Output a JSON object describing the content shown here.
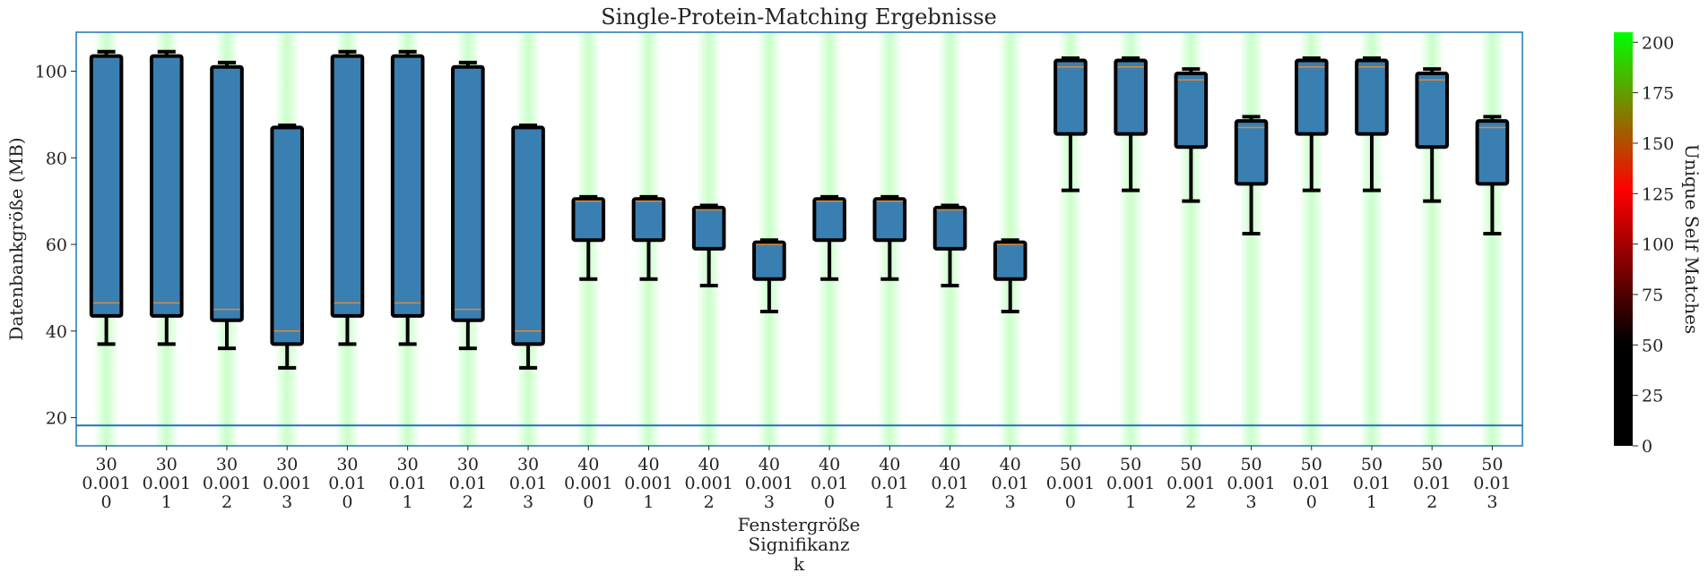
{
  "chart_data": {
    "type": "boxplot",
    "title": "Single-Protein-Matching Ergebnisse",
    "ylabel": "Datenbankgröße (MB)",
    "xlabel_lines": [
      "Fenstergröße",
      "Signifikanz",
      "k"
    ],
    "ylim": [
      13.5,
      109
    ],
    "yticks": [
      20,
      40,
      60,
      80,
      100
    ],
    "reference_line": 18.2,
    "box_fill": "#3a7fb2",
    "box_edge": "#000000",
    "median_color": "#d98a3a",
    "background_band_color": "#bfffbf",
    "categories": [
      [
        "30",
        "0.001",
        "0"
      ],
      [
        "30",
        "0.001",
        "1"
      ],
      [
        "30",
        "0.001",
        "2"
      ],
      [
        "30",
        "0.001",
        "3"
      ],
      [
        "30",
        "0.01",
        "0"
      ],
      [
        "30",
        "0.01",
        "1"
      ],
      [
        "30",
        "0.01",
        "2"
      ],
      [
        "30",
        "0.01",
        "3"
      ],
      [
        "40",
        "0.001",
        "0"
      ],
      [
        "40",
        "0.001",
        "1"
      ],
      [
        "40",
        "0.001",
        "2"
      ],
      [
        "40",
        "0.001",
        "3"
      ],
      [
        "40",
        "0.01",
        "0"
      ],
      [
        "40",
        "0.01",
        "1"
      ],
      [
        "40",
        "0.01",
        "2"
      ],
      [
        "40",
        "0.01",
        "3"
      ],
      [
        "50",
        "0.001",
        "0"
      ],
      [
        "50",
        "0.001",
        "1"
      ],
      [
        "50",
        "0.001",
        "2"
      ],
      [
        "50",
        "0.001",
        "3"
      ],
      [
        "50",
        "0.01",
        "0"
      ],
      [
        "50",
        "0.01",
        "1"
      ],
      [
        "50",
        "0.01",
        "2"
      ],
      [
        "50",
        "0.01",
        "3"
      ]
    ],
    "boxes": [
      {
        "whisker_low": 37,
        "q1": 43.5,
        "median": 46.5,
        "q3": 103.5,
        "whisker_high": 104.5
      },
      {
        "whisker_low": 37,
        "q1": 43.5,
        "median": 46.5,
        "q3": 103.5,
        "whisker_high": 104.5
      },
      {
        "whisker_low": 36,
        "q1": 42.5,
        "median": 45,
        "q3": 101,
        "whisker_high": 102
      },
      {
        "whisker_low": 31.5,
        "q1": 37,
        "median": 40,
        "q3": 87,
        "whisker_high": 87.5
      },
      {
        "whisker_low": 37,
        "q1": 43.5,
        "median": 46.5,
        "q3": 103.5,
        "whisker_high": 104.5
      },
      {
        "whisker_low": 37,
        "q1": 43.5,
        "median": 46.5,
        "q3": 103.5,
        "whisker_high": 104.5
      },
      {
        "whisker_low": 36,
        "q1": 42.5,
        "median": 45,
        "q3": 101,
        "whisker_high": 102
      },
      {
        "whisker_low": 31.5,
        "q1": 37,
        "median": 40,
        "q3": 87,
        "whisker_high": 87.5
      },
      {
        "whisker_low": 52,
        "q1": 61,
        "median": 70,
        "q3": 70.5,
        "whisker_high": 71
      },
      {
        "whisker_low": 52,
        "q1": 61,
        "median": 70,
        "q3": 70.5,
        "whisker_high": 71
      },
      {
        "whisker_low": 50.5,
        "q1": 59,
        "median": 68,
        "q3": 68.5,
        "whisker_high": 69
      },
      {
        "whisker_low": 44.5,
        "q1": 52,
        "median": 60,
        "q3": 60.5,
        "whisker_high": 61
      },
      {
        "whisker_low": 52,
        "q1": 61,
        "median": 70,
        "q3": 70.5,
        "whisker_high": 71
      },
      {
        "whisker_low": 52,
        "q1": 61,
        "median": 70,
        "q3": 70.5,
        "whisker_high": 71
      },
      {
        "whisker_low": 50.5,
        "q1": 59,
        "median": 68,
        "q3": 68.5,
        "whisker_high": 69
      },
      {
        "whisker_low": 44.5,
        "q1": 52,
        "median": 60,
        "q3": 60.5,
        "whisker_high": 61
      },
      {
        "whisker_low": 72.5,
        "q1": 85.5,
        "median": 101,
        "q3": 102.5,
        "whisker_high": 103
      },
      {
        "whisker_low": 72.5,
        "q1": 85.5,
        "median": 101,
        "q3": 102.5,
        "whisker_high": 103
      },
      {
        "whisker_low": 70,
        "q1": 82.5,
        "median": 98,
        "q3": 99.5,
        "whisker_high": 100.5
      },
      {
        "whisker_low": 62.5,
        "q1": 74,
        "median": 87,
        "q3": 88.5,
        "whisker_high": 89.5
      },
      {
        "whisker_low": 72.5,
        "q1": 85.5,
        "median": 101,
        "q3": 102.5,
        "whisker_high": 103
      },
      {
        "whisker_low": 72.5,
        "q1": 85.5,
        "median": 101,
        "q3": 102.5,
        "whisker_high": 103
      },
      {
        "whisker_low": 70,
        "q1": 82.5,
        "median": 98,
        "q3": 99.5,
        "whisker_high": 100.5
      },
      {
        "whisker_low": 62.5,
        "q1": 74,
        "median": 87,
        "q3": 88.5,
        "whisker_high": 89.5
      }
    ],
    "colorbar": {
      "label": "Unique Self Matches",
      "range": [
        0,
        205
      ],
      "ticks": [
        0,
        25,
        50,
        75,
        100,
        125,
        150,
        175,
        200
      ],
      "colors": [
        "#000000",
        "#000000",
        "#ff0000",
        "#00ff00"
      ],
      "color_stops": [
        0,
        0.25,
        0.62,
        1
      ]
    }
  }
}
